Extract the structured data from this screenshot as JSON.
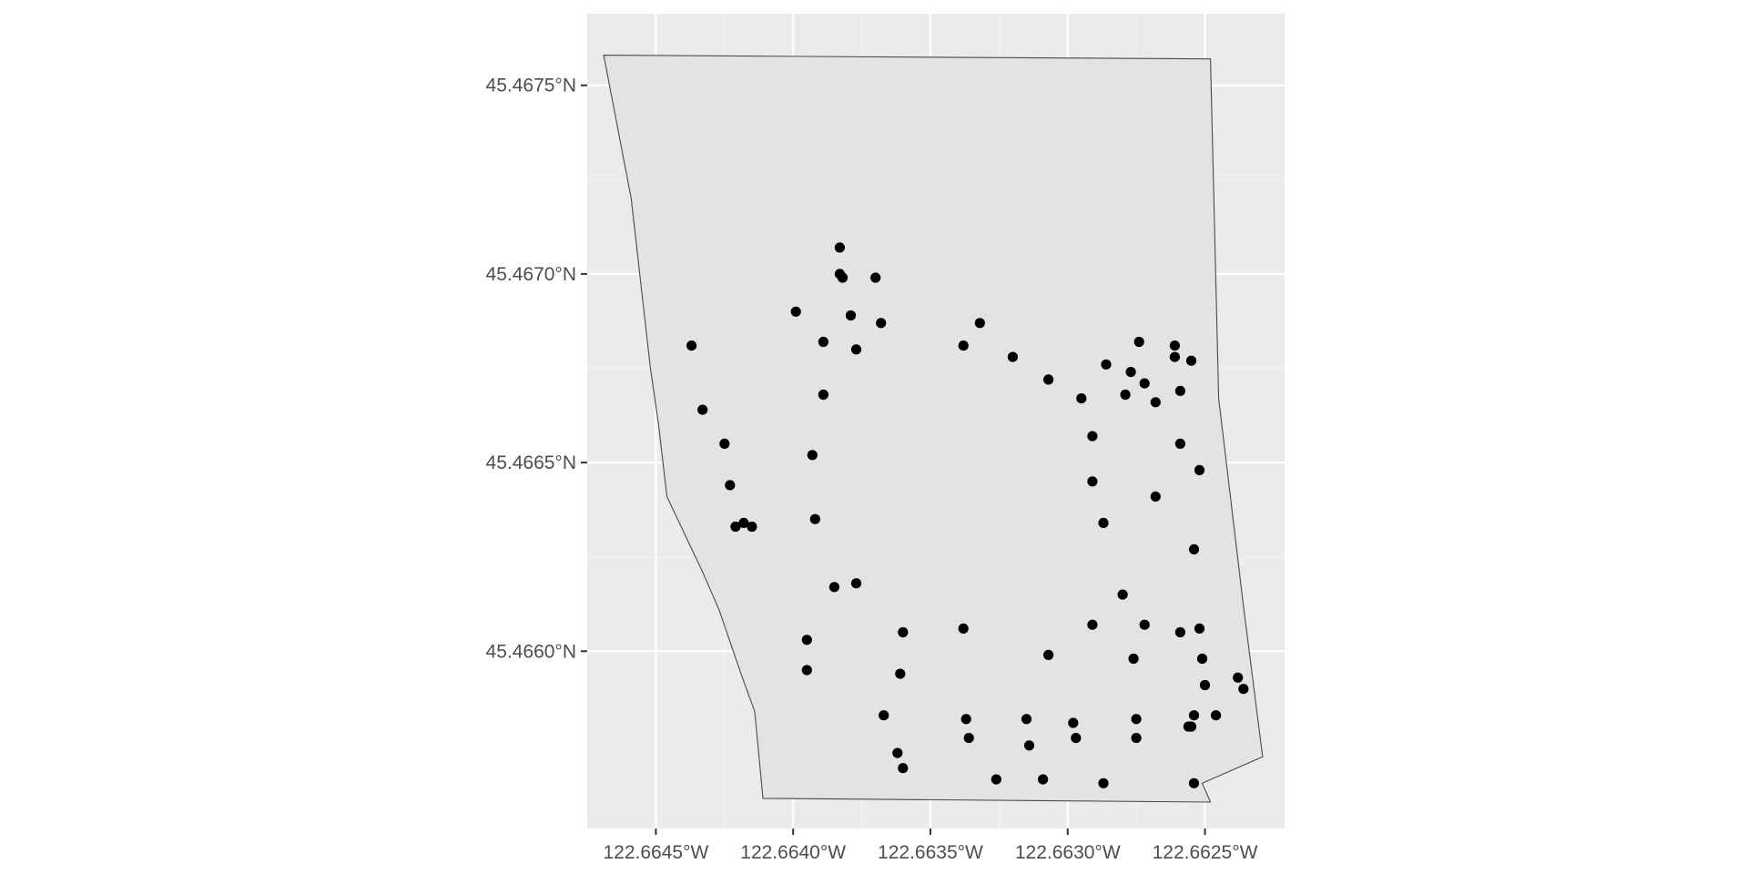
{
  "chart_data": {
    "type": "scatter",
    "title": "",
    "xlabel": "",
    "ylabel": "",
    "xlim": [
      -122.66475,
      -122.66221
    ],
    "ylim": [
      45.46553,
      45.46769
    ],
    "x_ticks": [
      {
        "value": -122.6645,
        "label": "122.6645°W"
      },
      {
        "value": -122.664,
        "label": "122.6640°W"
      },
      {
        "value": -122.6635,
        "label": "122.6635°W"
      },
      {
        "value": -122.663,
        "label": "122.6630°W"
      },
      {
        "value": -122.6625,
        "label": "122.6625°W"
      }
    ],
    "y_ticks": [
      {
        "value": 45.4675,
        "label": "45.4675°N"
      },
      {
        "value": 45.467,
        "label": "45.4670°N"
      },
      {
        "value": 45.4665,
        "label": "45.4665°N"
      },
      {
        "value": 45.466,
        "label": "45.4660°N"
      }
    ],
    "grid": true,
    "colors": {
      "panel": "#ebebeb",
      "polygon_fill": "#e3e3e3",
      "polygon_stroke": "#4a4a4a",
      "point": "#000000"
    },
    "boundary": [
      [
        -122.66469,
        45.46758
      ],
      [
        -122.66248,
        45.46757
      ],
      [
        -122.66245,
        45.46667
      ],
      [
        -122.66236,
        45.46612
      ],
      [
        -122.66229,
        45.46572
      ],
      [
        -122.66251,
        45.46565
      ],
      [
        -122.66248,
        45.4656
      ],
      [
        -122.66411,
        45.46561
      ],
      [
        -122.66414,
        45.46584
      ],
      [
        -122.66419,
        45.46594
      ],
      [
        -122.66427,
        45.46611
      ],
      [
        -122.66433,
        45.46621
      ],
      [
        -122.66446,
        45.46641
      ],
      [
        -122.66449,
        45.4666
      ],
      [
        -122.66452,
        45.46675
      ],
      [
        -122.66459,
        45.4672
      ],
      [
        -122.66464,
        45.46739
      ],
      [
        -122.66469,
        45.46758
      ]
    ],
    "points": [
      [
        -122.66437,
        45.46681
      ],
      [
        -122.66433,
        45.46664
      ],
      [
        -122.66425,
        45.46655
      ],
      [
        -122.66423,
        45.46644
      ],
      [
        -122.66421,
        45.46633
      ],
      [
        -122.66418,
        45.46634
      ],
      [
        -122.66415,
        45.46633
      ],
      [
        -122.66399,
        45.4669
      ],
      [
        -122.66389,
        45.46682
      ],
      [
        -122.66389,
        45.46668
      ],
      [
        -122.66393,
        45.46652
      ],
      [
        -122.66392,
        45.46635
      ],
      [
        -122.66385,
        45.46617
      ],
      [
        -122.66377,
        45.46618
      ],
      [
        -122.66395,
        45.46603
      ],
      [
        -122.66395,
        45.46595
      ],
      [
        -122.66383,
        45.46707
      ],
      [
        -122.66383,
        45.467
      ],
      [
        -122.66382,
        45.46699
      ],
      [
        -122.6637,
        45.46699
      ],
      [
        -122.66379,
        45.46689
      ],
      [
        -122.66377,
        45.4668
      ],
      [
        -122.66368,
        45.46687
      ],
      [
        -122.6636,
        45.46605
      ],
      [
        -122.66361,
        45.46594
      ],
      [
        -122.66367,
        45.46583
      ],
      [
        -122.66362,
        45.46573
      ],
      [
        -122.6636,
        45.46569
      ],
      [
        -122.66338,
        45.46681
      ],
      [
        -122.66332,
        45.46687
      ],
      [
        -122.6632,
        45.46678
      ],
      [
        -122.66307,
        45.46672
      ],
      [
        -122.66338,
        45.46606
      ],
      [
        -122.66307,
        45.46599
      ],
      [
        -122.66337,
        45.46582
      ],
      [
        -122.66336,
        45.46577
      ],
      [
        -122.66315,
        45.46582
      ],
      [
        -122.66314,
        45.46575
      ],
      [
        -122.66298,
        45.46581
      ],
      [
        -122.66297,
        45.46577
      ],
      [
        -122.66326,
        45.46566
      ],
      [
        -122.66309,
        45.46566
      ],
      [
        -122.66287,
        45.46565
      ],
      [
        -122.66295,
        45.46667
      ],
      [
        -122.66291,
        45.46657
      ],
      [
        -122.66291,
        45.46645
      ],
      [
        -122.66287,
        45.46634
      ],
      [
        -122.66286,
        45.46676
      ],
      [
        -122.66279,
        45.46668
      ],
      [
        -122.66277,
        45.46674
      ],
      [
        -122.66274,
        45.46682
      ],
      [
        -122.66272,
        45.46671
      ],
      [
        -122.66268,
        45.46666
      ],
      [
        -122.66261,
        45.46678
      ],
      [
        -122.66261,
        45.46681
      ],
      [
        -122.66259,
        45.46669
      ],
      [
        -122.66255,
        45.46677
      ],
      [
        -122.66259,
        45.46655
      ],
      [
        -122.66252,
        45.46648
      ],
      [
        -122.66268,
        45.46641
      ],
      [
        -122.66254,
        45.46627
      ],
      [
        -122.6628,
        45.46615
      ],
      [
        -122.66291,
        45.46607
      ],
      [
        -122.66272,
        45.46607
      ],
      [
        -122.66276,
        45.46598
      ],
      [
        -122.66259,
        45.46605
      ],
      [
        -122.66252,
        45.46606
      ],
      [
        -122.66251,
        45.46598
      ],
      [
        -122.6625,
        45.46591
      ],
      [
        -122.66254,
        45.46583
      ],
      [
        -122.66255,
        45.4658
      ],
      [
        -122.66256,
        45.4658
      ],
      [
        -122.66246,
        45.46583
      ],
      [
        -122.66275,
        45.46582
      ],
      [
        -122.66275,
        45.46577
      ],
      [
        -122.66254,
        45.46565
      ],
      [
        -122.66238,
        45.46593
      ],
      [
        -122.66236,
        45.4659
      ]
    ]
  }
}
